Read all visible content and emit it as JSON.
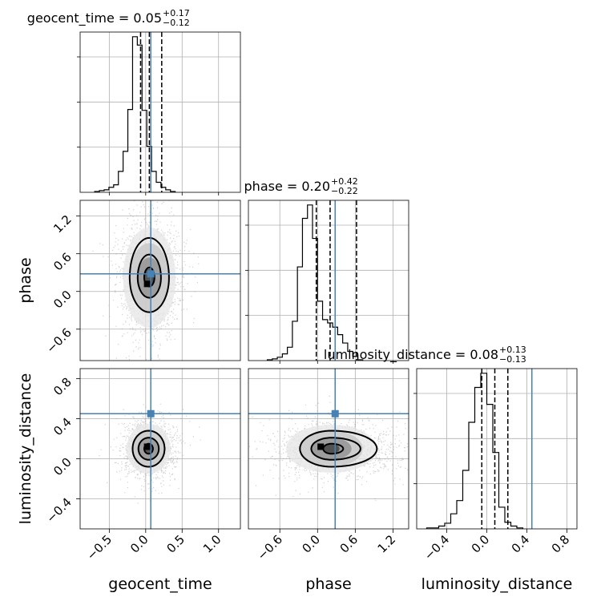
{
  "chart_data": {
    "type": "corner",
    "truth_color": "#4682b4",
    "parameters": [
      {
        "name": "geocent_time",
        "label": "geocent_time",
        "range": [
          -0.9,
          1.3
        ],
        "ticks": [
          -0.5,
          0.0,
          0.5,
          1.0
        ],
        "tick_labels": [
          "−0.5",
          "0.0",
          "0.5",
          "1.0"
        ],
        "title_main": "geocent_time = 0.05",
        "title_plus": "+0.17",
        "title_minus": "−0.12",
        "median": 0.05,
        "quantiles": [
          -0.07,
          0.05,
          0.22
        ],
        "truth": 0.07,
        "hist": {
          "bin_start": -0.7,
          "bin_width": 0.065,
          "counts": [
            1,
            2,
            3,
            6,
            9,
            25,
            49,
            99,
            186,
            176,
            98,
            55,
            25,
            12,
            6,
            3,
            1
          ]
        }
      },
      {
        "name": "phase",
        "label": "phase",
        "range": [
          -1.1,
          1.45
        ],
        "ticks": [
          -0.6,
          0.0,
          0.6,
          1.2
        ],
        "tick_labels": [
          "−0.6",
          "0.0",
          "0.6",
          "1.2"
        ],
        "title_main": "phase = 0.20",
        "title_plus": "+0.42",
        "title_minus": "−0.22",
        "median": 0.2,
        "quantiles": [
          -0.02,
          0.2,
          0.62
        ],
        "truth": 0.28,
        "hist": {
          "bin_start": -0.8,
          "bin_width": 0.08,
          "counts": [
            1,
            2,
            4,
            8,
            16,
            47,
            112,
            170,
            186,
            146,
            71,
            49,
            45,
            40,
            31,
            21,
            11,
            5,
            1
          ]
        }
      },
      {
        "name": "luminosity_distance",
        "label": "luminosity_distance",
        "range": [
          -0.7,
          0.9
        ],
        "ticks": [
          -0.4,
          0.0,
          0.4,
          0.8
        ],
        "tick_labels": [
          "−0.4",
          "0.0",
          "0.4",
          "0.8"
        ],
        "title_main": "luminosity_distance = 0.08",
        "title_plus": "+0.13",
        "title_minus": "−0.13",
        "median": 0.08,
        "quantiles": [
          -0.05,
          0.08,
          0.21
        ],
        "truth": 0.45,
        "hist": {
          "bin_start": -0.6,
          "bin_width": 0.06,
          "counts": [
            1,
            1,
            3,
            6,
            16,
            30,
            62,
            113,
            150,
            165,
            132,
            81,
            23,
            7,
            3,
            1
          ]
        }
      }
    ],
    "pairs": [
      {
        "x": "geocent_time",
        "y": "phase",
        "center": [
          0.05,
          0.22
        ],
        "contour_levels": [
          {
            "sx": 0.07,
            "sy": 0.14
          },
          {
            "sx": 0.16,
            "sy": 0.32
          },
          {
            "sx": 0.27,
            "sy": 0.55
          },
          {
            "sx": 0.36,
            "sy": 0.8
          }
        ],
        "mode": [
          0.02,
          0.12
        ]
      },
      {
        "x": "geocent_time",
        "y": "luminosity_distance",
        "center": [
          0.04,
          0.1
        ],
        "contour_levels": [
          {
            "sx": 0.06,
            "sy": 0.05
          },
          {
            "sx": 0.14,
            "sy": 0.11
          },
          {
            "sx": 0.22,
            "sy": 0.18
          },
          {
            "sx": 0.3,
            "sy": 0.25
          }
        ],
        "mode": [
          0.02,
          0.12
        ]
      },
      {
        "x": "phase",
        "y": "luminosity_distance",
        "center": [
          0.22,
          0.1
        ],
        "contour_levels": [
          {
            "sx": 0.13,
            "sy": 0.05
          },
          {
            "sx": 0.32,
            "sy": 0.11
          },
          {
            "sx": 0.5,
            "sy": 0.18
          },
          {
            "sx": 0.72,
            "sy": 0.24
          }
        ],
        "mode": [
          0.05,
          0.12
        ]
      }
    ]
  }
}
